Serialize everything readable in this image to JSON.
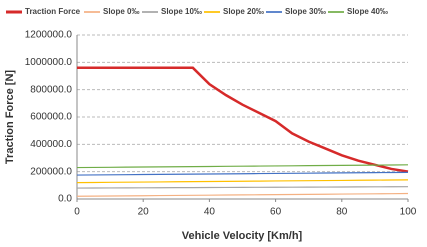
{
  "chart_data": {
    "type": "line",
    "xlabel": "Vehicle Velocity [Km/h]",
    "ylabel": "Traction Force [N]",
    "x": [
      0,
      5,
      10,
      15,
      20,
      25,
      30,
      35,
      40,
      45,
      50,
      55,
      60,
      65,
      70,
      75,
      80,
      85,
      90,
      95,
      100
    ],
    "series": [
      {
        "name": "Traction Force",
        "color": "#d62a2a",
        "width": 2.5,
        "values": [
          960000,
          960000,
          960000,
          960000,
          960000,
          960000,
          960000,
          960000,
          840000,
          760000,
          690000,
          630000,
          570000,
          480000,
          420000,
          370000,
          320000,
          280000,
          250000,
          220000,
          200000
        ]
      },
      {
        "name": "Slope 0‰",
        "color": "#f4b183",
        "width": 1.2,
        "values": [
          20000,
          21000,
          22000,
          23000,
          24000,
          25000,
          26000,
          27000,
          28000,
          29000,
          30000,
          31000,
          32000,
          33000,
          34000,
          35000,
          36000,
          37000,
          38000,
          39000,
          40000
        ]
      },
      {
        "name": "Slope 10‰",
        "color": "#a5a5a5",
        "width": 1.2,
        "values": [
          80000,
          80500,
          81000,
          81500,
          82000,
          82500,
          83000,
          83500,
          84000,
          84500,
          85000,
          85500,
          86000,
          86500,
          87000,
          87500,
          88000,
          88500,
          89000,
          89500,
          90000
        ]
      },
      {
        "name": "Slope 20‰",
        "color": "#ffc000",
        "width": 1.2,
        "values": [
          120000,
          121000,
          122000,
          123000,
          124000,
          125000,
          126000,
          127000,
          128000,
          129000,
          130000,
          131000,
          132000,
          133000,
          134000,
          135000,
          136000,
          137000,
          138000,
          139000,
          140000
        ]
      },
      {
        "name": "Slope 30‰",
        "color": "#4472c4",
        "width": 1.2,
        "values": [
          175000,
          176000,
          177000,
          178000,
          179000,
          180000,
          181000,
          182000,
          183000,
          184000,
          185000,
          186000,
          187000,
          188000,
          189000,
          190000,
          191000,
          192000,
          193000,
          194000,
          195000
        ]
      },
      {
        "name": "Slope 40‰",
        "color": "#70ad47",
        "width": 1.2,
        "values": [
          230000,
          231000,
          232000,
          233000,
          234000,
          235000,
          236000,
          237000,
          238000,
          239000,
          240000,
          241000,
          242000,
          243000,
          244000,
          245000,
          246000,
          247000,
          248000,
          249000,
          250000
        ]
      }
    ],
    "xlim": [
      0,
      100
    ],
    "xticks": [
      0,
      20,
      40,
      60,
      80,
      100
    ],
    "ylim": [
      0,
      1200000
    ],
    "yticks": [
      {
        "value": 0,
        "label": "0.0"
      },
      {
        "value": 200000,
        "label": "200000.0"
      },
      {
        "value": 400000,
        "label": "400000.0"
      },
      {
        "value": 600000,
        "label": "600000.0"
      },
      {
        "value": 800000,
        "label": "800000.0"
      },
      {
        "value": 1000000,
        "label": "1000000.0"
      },
      {
        "value": 1200000,
        "label": "1200000.0"
      }
    ],
    "grid": true,
    "legend": "top"
  }
}
